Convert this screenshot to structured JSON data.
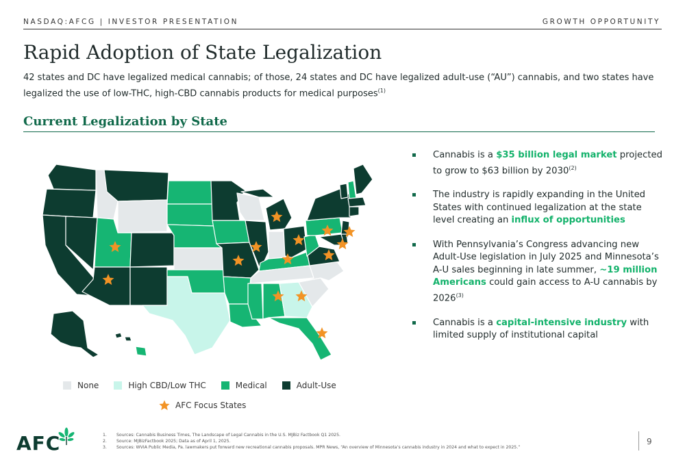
{
  "header": {
    "left": "NASDAQ:AFCG | INVESTOR PRESENTATION",
    "right": "GROWTH OPPORTUNITY"
  },
  "title": "Rapid Adoption of State Legalization",
  "subtitle": {
    "text": "42 states and DC have legalized medical cannabis; of those, 24 states and DC have legalized adult-use (“AU”) cannabis, and two states have legalized the use of low-THC, high-CBD cannabis products for medical purposes",
    "footnote": "(1)"
  },
  "section_heading": "Current Legalization by State",
  "colors": {
    "none": "#e4e8ea",
    "high_cbd": "#c8f5ea",
    "medical": "#16b573",
    "adult_use": "#0d3c30",
    "focus_star": "#f29325",
    "accent": "#10694a"
  },
  "bullets": [
    {
      "pre": "Cannabis is a ",
      "hl": "$35 billion legal market",
      "post": " projected to grow to $63 billion by 2030",
      "sup": "(2)"
    },
    {
      "pre": "The industry is rapidly expanding in the United States with continued legalization at the state level creating an ",
      "hl": "influx of opportunities",
      "post": "",
      "sup": ""
    },
    {
      "pre": "With Pennsylvania’s Congress advancing new Adult-Use legislation in July 2025 and Minnesota’s A-U sales beginning in late summer, ",
      "hl": "~19 million Americans",
      "post": " could gain access to A-U cannabis by 2026",
      "sup": "(3)"
    },
    {
      "pre": "Cannabis is a ",
      "hl": "capital-intensive industry",
      "post": " with limited supply of institutional capital",
      "sup": ""
    }
  ],
  "legend": {
    "none": "None",
    "high_cbd": "High CBD/Low THC",
    "medical": "Medical",
    "adult_use": "Adult-Use",
    "focus": "AFC Focus States"
  },
  "logo": "AFC",
  "footnotes": [
    {
      "num": "1.",
      "text": "Sources: Cannabis Business Times, The Landscape of Legal Cannabis in the U.S. MJBiz Factbook Q1 2025."
    },
    {
      "num": "2.",
      "text": "Source: MJBizFactbook 2025; Data as of April 1, 2025."
    },
    {
      "num": "3.",
      "text": "Sources: WVIA Public Media, Pa. lawmakers put forward new recreational cannabis proposals. MPR News, “An overview of Minnesota’s cannabis industry in 2024 and what to expect in 2025.”"
    }
  ],
  "page_number": "9"
}
